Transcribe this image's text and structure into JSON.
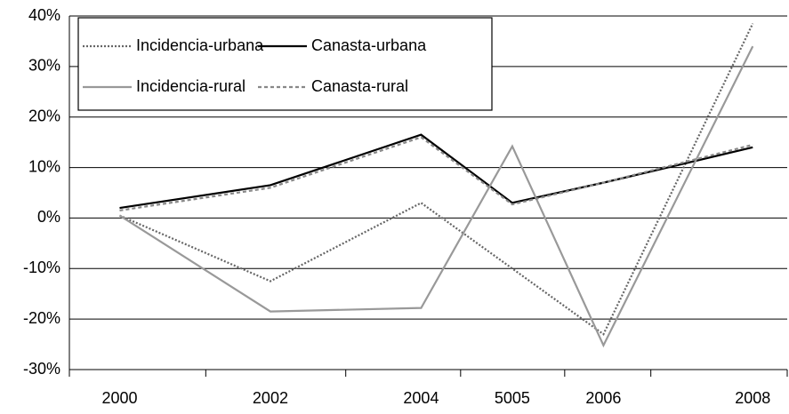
{
  "chart_data": {
    "type": "line",
    "categories": [
      "2000",
      "2002",
      "2004",
      "5005",
      "2006",
      "2008"
    ],
    "series": [
      {
        "name": "Incidencia-urbana",
        "color": "#666666",
        "dash": "2,2",
        "values": [
          0.5,
          -12.5,
          3,
          -10,
          -23,
          38.5
        ]
      },
      {
        "name": "Canasta-urbana",
        "color": "#000000",
        "dash": "",
        "values": [
          2,
          6.5,
          16.5,
          3,
          7,
          14
        ]
      },
      {
        "name": "Incidencia-rural",
        "color": "#999999",
        "dash": "",
        "values": [
          0.5,
          -18.5,
          -17.8,
          14.2,
          -25.2,
          34
        ]
      },
      {
        "name": "Canasta-rural",
        "color": "#888888",
        "dash": "4,3",
        "values": [
          1.5,
          6,
          16,
          2.7,
          7,
          14.5
        ]
      }
    ],
    "ylim": [
      -30,
      40
    ],
    "yticks": [
      {
        "value": -30,
        "label": "-30%"
      },
      {
        "value": -20,
        "label": "-20%"
      },
      {
        "value": -10,
        "label": "-10%"
      },
      {
        "value": 0,
        "label": "0%"
      },
      {
        "value": 10,
        "label": "10%"
      },
      {
        "value": 20,
        "label": "20%"
      },
      {
        "value": 30,
        "label": "30%"
      },
      {
        "value": 40,
        "label": "40%"
      }
    ],
    "grid": true
  }
}
